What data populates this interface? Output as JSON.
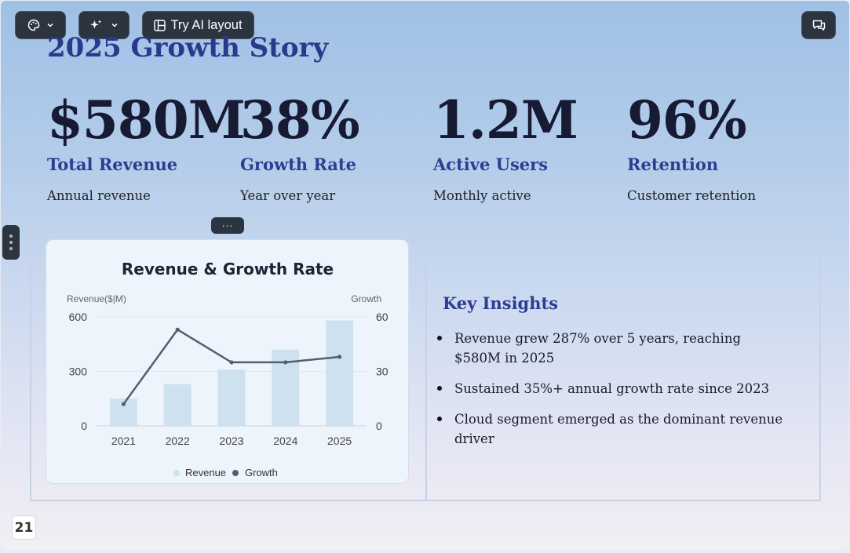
{
  "toolbar": {
    "theme_icon": "palette-icon",
    "magic_icon": "sparkles-icon",
    "ai_layout_label": "Try AI layout",
    "ai_layout_icon": "layout-icon",
    "comment_icon": "comment-icon"
  },
  "slide": {
    "title": "2025 Growth Story",
    "page_number": "21",
    "more_handle": "...",
    "stats": [
      {
        "value": "$580M",
        "label": "Total Revenue",
        "sub": "Annual revenue"
      },
      {
        "value": "38%",
        "label": "Growth Rate",
        "sub": "Year over year"
      },
      {
        "value": "1.2M",
        "label": "Active Users",
        "sub": "Monthly active"
      },
      {
        "value": "96%",
        "label": "Retention",
        "sub": "Customer retention"
      }
    ],
    "insights_title": "Key Insights",
    "insights": [
      "Revenue grew 287% over 5 years, reaching $580M in 2025",
      "Sustained 35%+ annual growth rate since 2023",
      "Cloud segment emerged as the dominant revenue driver"
    ]
  },
  "colors": {
    "accent": "#2e3c92",
    "bar": "#cde2ee",
    "line": "#545c70"
  },
  "chart_data": {
    "type": "bar",
    "title": "Revenue & Growth Rate",
    "categories": [
      "2021",
      "2022",
      "2023",
      "2024",
      "2025"
    ],
    "ylabel": "Revenue($|M)",
    "y2label": "Growth",
    "ylim": [
      0,
      600
    ],
    "y2lim": [
      0,
      60
    ],
    "yticks": [
      "0",
      "300",
      "600"
    ],
    "y2ticks": [
      "0",
      "30",
      "60"
    ],
    "series": [
      {
        "name": "Revenue",
        "type": "bar",
        "axis": "left",
        "values": [
          150,
          230,
          310,
          420,
          580
        ]
      },
      {
        "name": "Growth",
        "type": "line",
        "axis": "right",
        "values": [
          12,
          53,
          35,
          35,
          38
        ]
      }
    ],
    "legend": "bottom",
    "grid": true
  }
}
